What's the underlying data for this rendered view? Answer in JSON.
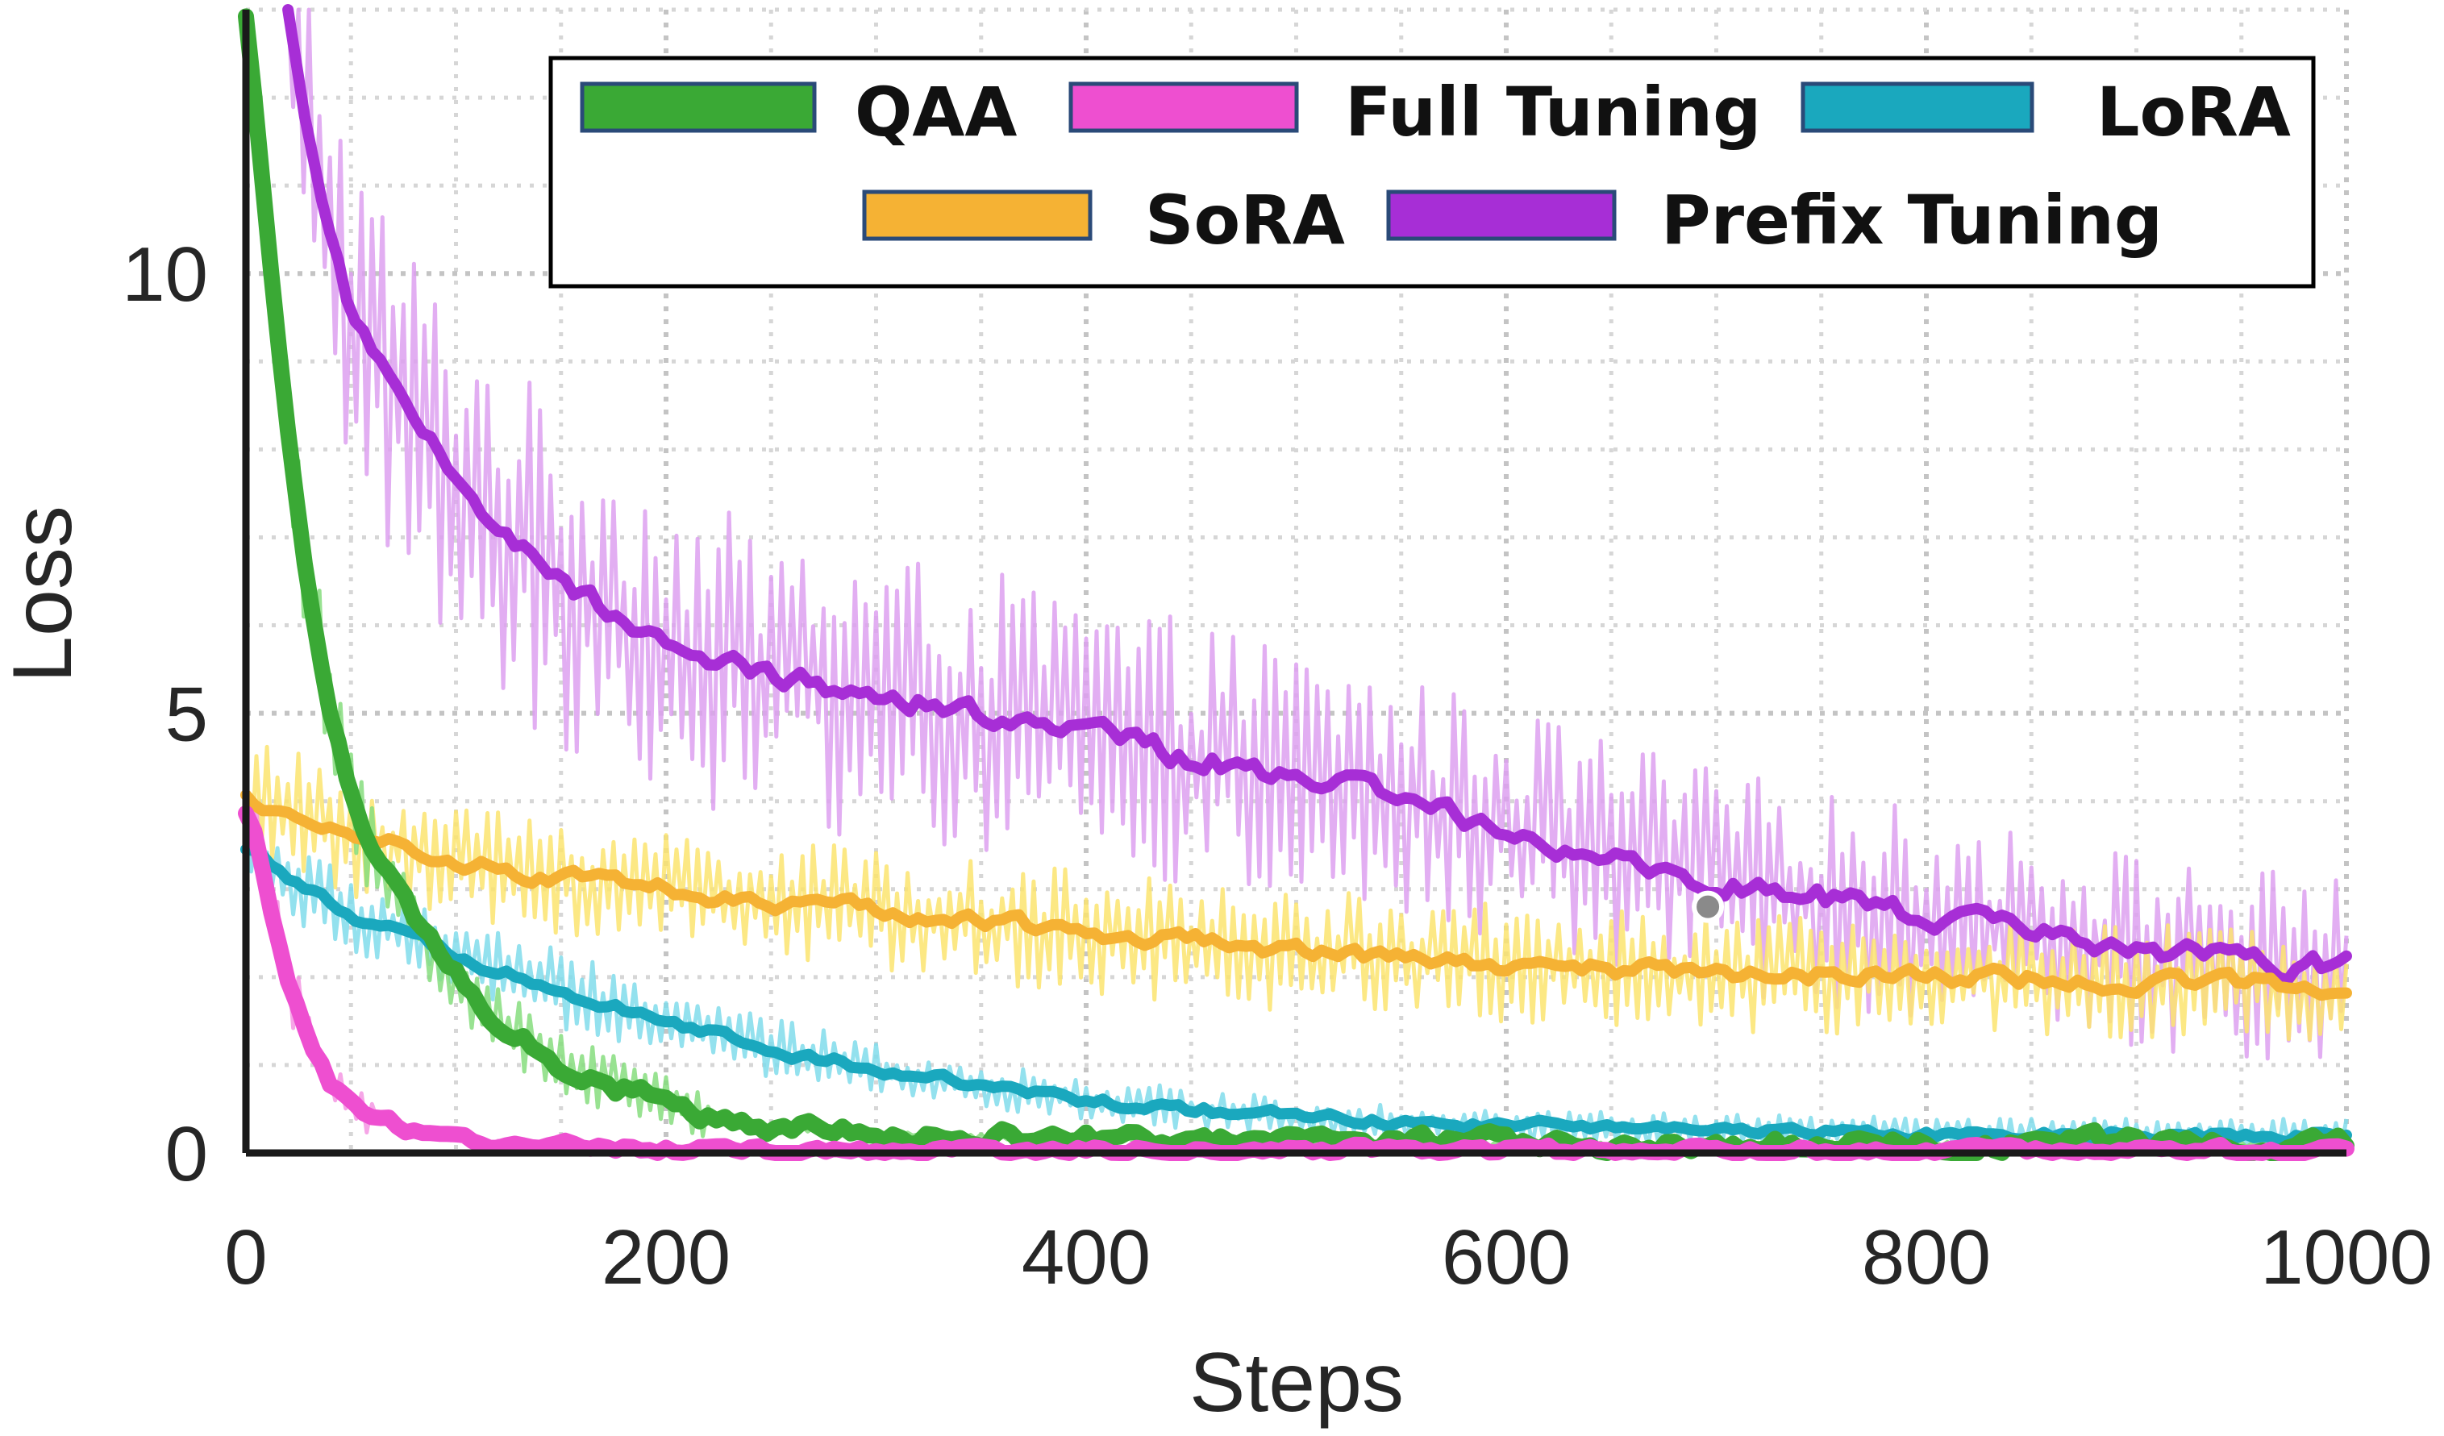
{
  "chart_data": {
    "type": "line",
    "xlabel": "Steps",
    "ylabel": "Loss",
    "xlim": [
      0,
      1000
    ],
    "ylim": [
      0,
      13
    ],
    "xticks": [
      0,
      200,
      400,
      600,
      800,
      1000
    ],
    "xtick_labels": [
      "0",
      "200",
      "400",
      "600",
      "800",
      "1000"
    ],
    "yticks": [
      0,
      5,
      10
    ],
    "ytick_labels": [
      "0",
      "5",
      "10"
    ],
    "grid": true,
    "legend_position": "top-right",
    "legend_order": [
      "QAA",
      "Full Tuning",
      "LoRA",
      "SoRA",
      "Prefix Tuning"
    ],
    "annotation": {
      "type": "point-marker",
      "x": 696,
      "y": 2.8
    },
    "series": [
      {
        "name": "QAA",
        "color": "#3aa935",
        "raw_color": "#86dd7e",
        "noise": 0.8,
        "noise_until": 220,
        "x": [
          0,
          10,
          20,
          30,
          40,
          50,
          60,
          80,
          100,
          120,
          150,
          200,
          250,
          300,
          400,
          500,
          600,
          700,
          800,
          900,
          1000
        ],
        "values": [
          13.0,
          10.5,
          8.3,
          6.4,
          5.0,
          4.0,
          3.4,
          2.6,
          2.0,
          1.5,
          1.0,
          0.55,
          0.3,
          0.22,
          0.15,
          0.12,
          0.1,
          0.1,
          0.1,
          0.1,
          0.1
        ]
      },
      {
        "name": "Full Tuning",
        "color": "#ee4fd0",
        "raw_color": "#f596e3",
        "noise": 0.45,
        "noise_until": 60,
        "x": [
          0,
          5,
          10,
          20,
          30,
          40,
          60,
          80,
          100,
          150,
          200,
          300,
          500,
          700,
          1000
        ],
        "values": [
          3.9,
          3.6,
          3.0,
          2.0,
          1.3,
          0.8,
          0.4,
          0.25,
          0.15,
          0.08,
          0.05,
          0.03,
          0.02,
          0.02,
          0.02
        ]
      },
      {
        "name": "LoRA",
        "color": "#1aa8be",
        "raw_color": "#80dceb",
        "noise": 0.45,
        "noise_until": 1000,
        "x": [
          0,
          20,
          50,
          100,
          150,
          200,
          250,
          300,
          350,
          400,
          500,
          600,
          700,
          800,
          900,
          1000
        ],
        "values": [
          3.5,
          3.1,
          2.7,
          2.25,
          1.85,
          1.5,
          1.2,
          0.95,
          0.75,
          0.6,
          0.4,
          0.3,
          0.25,
          0.22,
          0.2,
          0.2
        ]
      },
      {
        "name": "SoRA",
        "color": "#f5b234",
        "raw_color": "#fbe46e",
        "noise": 0.7,
        "noise_until": 1000,
        "x": [
          0,
          20,
          50,
          100,
          200,
          300,
          400,
          500,
          600,
          700,
          800,
          900,
          1000
        ],
        "values": [
          4.0,
          3.9,
          3.6,
          3.3,
          3.0,
          2.75,
          2.5,
          2.3,
          2.15,
          2.05,
          2.0,
          1.95,
          1.9
        ]
      },
      {
        "name": "Prefix Tuning",
        "color": "#a72ed6",
        "raw_color": "#dda0f0",
        "noise": 2.0,
        "noise_until": 1000,
        "x": [
          20,
          30,
          50,
          80,
          100,
          150,
          200,
          250,
          300,
          350,
          400,
          450,
          500,
          550,
          600,
          650,
          700,
          750,
          800,
          850,
          900,
          950,
          1000
        ],
        "values": [
          13.0,
          11.5,
          9.5,
          8.3,
          7.6,
          6.5,
          5.8,
          5.4,
          5.2,
          5.0,
          4.8,
          4.5,
          4.3,
          4.0,
          3.7,
          3.4,
          3.1,
          2.9,
          2.7,
          2.5,
          2.3,
          2.15,
          2.1
        ]
      }
    ]
  }
}
